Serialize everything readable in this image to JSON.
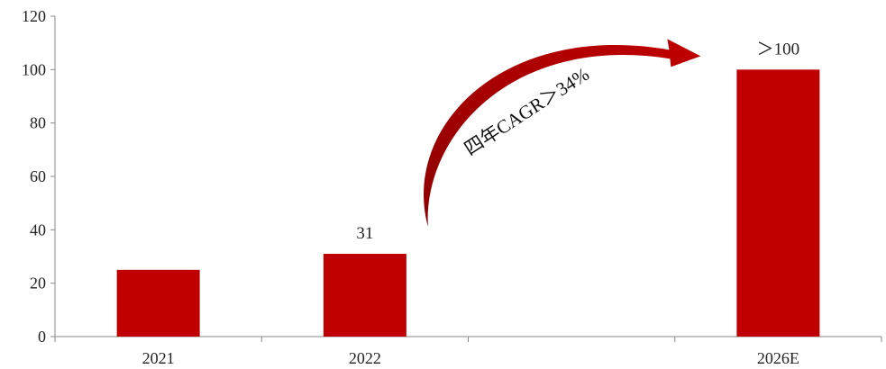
{
  "chart_data": {
    "type": "bar",
    "title": "",
    "xlabel": "",
    "ylabel": "",
    "categories": [
      "2021",
      "2022",
      "",
      "2026E"
    ],
    "values": [
      25,
      31,
      null,
      100
    ],
    "data_labels": [
      "",
      "31",
      "",
      "＞100"
    ],
    "ylim": [
      0,
      120
    ],
    "yticks": [
      0,
      20,
      40,
      60,
      80,
      100,
      120
    ],
    "grid": false,
    "legend": "none",
    "bar_color": "#c00000",
    "annotation": {
      "text": "四年CAGR＞34%",
      "from_category": "2022",
      "to_category": "2026E",
      "color": "#c00000"
    }
  }
}
